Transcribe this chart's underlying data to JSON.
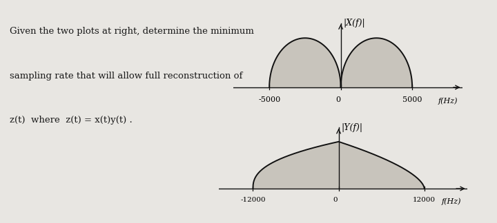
{
  "background_color": "#e8e6e2",
  "text_color": "#1a1a1a",
  "text_left_line1": "Given the two plots at right, determine the minimum",
  "text_left_line2": "sampling rate that will allow full reconstruction of",
  "text_left_line3a": "z(t)",
  "text_left_line3b": "  where  z(t) = x(t)y(t) .",
  "text_fontsize": 9.5,
  "plot1": {
    "title": "|X(f)|",
    "xlabel": "f(Hz)",
    "bandwidth": 5000,
    "xticks": [
      -5000,
      0,
      5000
    ],
    "xtick_labels": [
      "-5000",
      "0",
      "5000"
    ]
  },
  "plot2": {
    "title": "|Y(f)|",
    "xlabel": "f(Hz)",
    "bandwidth": 12000,
    "xticks": [
      -12000,
      0,
      12000
    ],
    "xtick_labels": [
      "-12000",
      "0",
      "12000"
    ]
  },
  "fill_color": "#c8c4bc",
  "line_color": "#111111",
  "axis_color": "#111111"
}
